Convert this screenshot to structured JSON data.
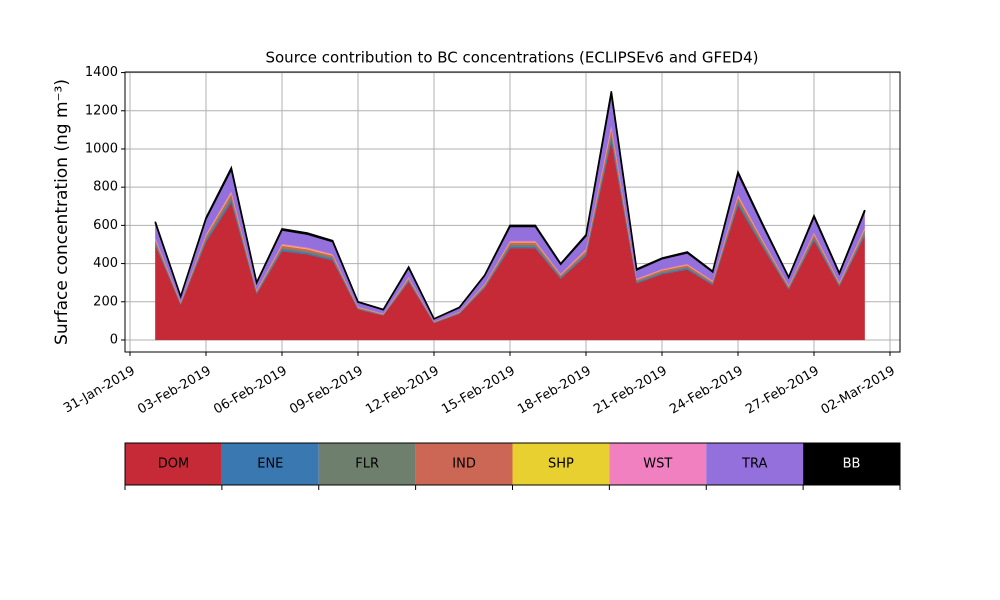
{
  "chart_data": {
    "type": "stacked_area",
    "title": "Source contribution to BC concentrations (ECLIPSEv6 and GFED4)",
    "y_label": "Surface concentration (ng m⁻³)",
    "x": [
      "2019-02-01",
      "2019-02-02",
      "2019-02-03",
      "2019-02-04",
      "2019-02-05",
      "2019-02-06",
      "2019-02-07",
      "2019-02-08",
      "2019-02-09",
      "2019-02-10",
      "2019-02-11",
      "2019-02-12",
      "2019-02-13",
      "2019-02-14",
      "2019-02-15",
      "2019-02-16",
      "2019-02-17",
      "2019-02-18",
      "2019-02-19",
      "2019-02-20",
      "2019-02-21",
      "2019-02-22",
      "2019-02-23",
      "2019-02-24",
      "2019-02-25",
      "2019-02-26",
      "2019-02-27",
      "2019-02-28",
      "2019-03-01"
    ],
    "series": [
      {
        "name": "DOM",
        "color": "#c62a36",
        "values": [
          496,
          184,
          512,
          720,
          240,
          464,
          448,
          416,
          160,
          128,
          304,
          88,
          136,
          272,
          480,
          480,
          320,
          440,
          1040,
          296,
          344,
          368,
          288,
          704,
          480,
          264,
          520,
          280,
          544
        ]
      },
      {
        "name": "ENE",
        "color": "#3a78b2",
        "values": [
          9,
          3,
          10,
          14,
          5,
          9,
          8,
          8,
          3,
          2,
          6,
          2,
          3,
          5,
          9,
          9,
          6,
          8,
          20,
          6,
          6,
          7,
          5,
          13,
          9,
          5,
          10,
          5,
          10
        ]
      },
      {
        "name": "FLR",
        "color": "#6e7f6e",
        "values": [
          9,
          3,
          10,
          14,
          5,
          9,
          8,
          8,
          3,
          2,
          6,
          2,
          3,
          5,
          9,
          9,
          6,
          8,
          20,
          6,
          6,
          7,
          5,
          13,
          9,
          5,
          10,
          5,
          10
        ]
      },
      {
        "name": "IND",
        "color": "#cc6655",
        "values": [
          12,
          5,
          13,
          18,
          6,
          12,
          11,
          10,
          4,
          3,
          8,
          2,
          3,
          7,
          12,
          12,
          8,
          11,
          26,
          7,
          9,
          9,
          7,
          18,
          12,
          7,
          13,
          7,
          14
        ]
      },
      {
        "name": "SHP",
        "color": "#e8d030",
        "values": [
          3,
          1,
          3,
          5,
          2,
          3,
          3,
          3,
          1,
          1,
          2,
          1,
          1,
          2,
          3,
          3,
          2,
          3,
          7,
          2,
          2,
          2,
          2,
          4,
          3,
          2,
          3,
          2,
          3
        ]
      },
      {
        "name": "WST",
        "color": "#f080c0",
        "values": [
          6,
          2,
          6,
          9,
          3,
          6,
          6,
          5,
          2,
          2,
          4,
          1,
          2,
          3,
          6,
          6,
          4,
          6,
          13,
          4,
          4,
          5,
          4,
          9,
          6,
          3,
          7,
          4,
          7
        ]
      },
      {
        "name": "TRA",
        "color": "#9370db",
        "values": [
          78,
          29,
          80,
          113,
          38,
          73,
          70,
          65,
          25,
          20,
          48,
          14,
          21,
          43,
          75,
          75,
          50,
          69,
          163,
          46,
          54,
          58,
          45,
          110,
          75,
          41,
          81,
          44,
          85
        ]
      },
      {
        "name": "BB",
        "color": "#000000",
        "values": [
          6,
          2,
          6,
          9,
          3,
          6,
          6,
          5,
          2,
          2,
          4,
          1,
          2,
          3,
          6,
          6,
          4,
          6,
          13,
          4,
          4,
          5,
          4,
          9,
          6,
          3,
          7,
          4,
          7
        ]
      }
    ],
    "xlim": [
      "2019-01-31",
      "2019-03-02"
    ],
    "xticks": [
      {
        "value": "2019-01-31",
        "label": "31-Jan-2019"
      },
      {
        "value": "2019-02-03",
        "label": "03-Feb-2019"
      },
      {
        "value": "2019-02-06",
        "label": "06-Feb-2019"
      },
      {
        "value": "2019-02-09",
        "label": "09-Feb-2019"
      },
      {
        "value": "2019-02-12",
        "label": "12-Feb-2019"
      },
      {
        "value": "2019-02-15",
        "label": "15-Feb-2019"
      },
      {
        "value": "2019-02-18",
        "label": "18-Feb-2019"
      },
      {
        "value": "2019-02-21",
        "label": "21-Feb-2019"
      },
      {
        "value": "2019-02-24",
        "label": "24-Feb-2019"
      },
      {
        "value": "2019-02-27",
        "label": "27-Feb-2019"
      },
      {
        "value": "2019-03-02",
        "label": "02-Mar-2019"
      }
    ],
    "ylim": [
      -63,
      1403
    ],
    "yticks": [
      0,
      200,
      400,
      600,
      800,
      1000,
      1200,
      1400
    ],
    "grid": true,
    "legend": "bottom"
  }
}
